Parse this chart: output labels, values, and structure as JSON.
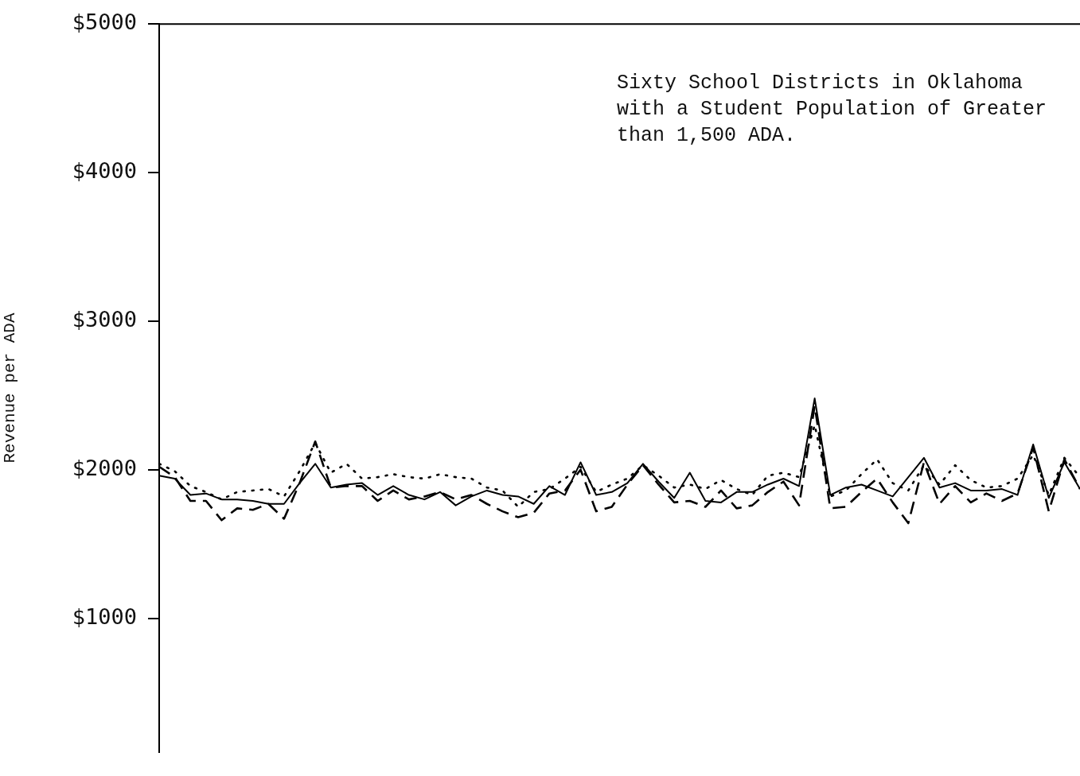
{
  "chart_data": {
    "type": "line",
    "ylabel": "Revenue per ADA",
    "categories": [
      null,
      null,
      null,
      null,
      null,
      null,
      null,
      null,
      null,
      null,
      null,
      null,
      null,
      null,
      null,
      null,
      null,
      null,
      null,
      null,
      null,
      null,
      null,
      null,
      null,
      null,
      null,
      null,
      null,
      null,
      null,
      null,
      null,
      null,
      null,
      null,
      null,
      null,
      null,
      null,
      null,
      null,
      null,
      null,
      null,
      null,
      null,
      null,
      null,
      null,
      null,
      null,
      null,
      null,
      null,
      null,
      null,
      null,
      null,
      null
    ],
    "series": [
      {
        "color": "#000000",
        "line_style": "solid",
        "values": [
          1960,
          1940,
          1830,
          1840,
          1800,
          1800,
          1790,
          1770,
          1770,
          1910,
          2040,
          1880,
          1900,
          1910,
          1830,
          1890,
          1830,
          1800,
          1850,
          1760,
          1820,
          1860,
          1830,
          1820,
          1770,
          1890,
          1830,
          2050,
          1830,
          1850,
          1910,
          2040,
          1920,
          1810,
          1980,
          1790,
          1780,
          1850,
          1850,
          1900,
          1940,
          1890,
          2480,
          1830,
          1880,
          1900,
          1860,
          1820,
          1950,
          2080,
          1880,
          1910,
          1860,
          1860,
          1870,
          1830,
          2170,
          1810,
          2050,
          1870
        ]
      },
      {
        "color": "#000000",
        "line_style": "dashed",
        "values": [
          2020,
          1950,
          1790,
          1790,
          1660,
          1740,
          1730,
          1770,
          1670,
          1910,
          2190,
          1880,
          1890,
          1890,
          1790,
          1860,
          1800,
          1820,
          1850,
          1800,
          1830,
          1770,
          1720,
          1680,
          1710,
          1840,
          1860,
          2000,
          1720,
          1750,
          1900,
          2030,
          1900,
          1780,
          1790,
          1750,
          1860,
          1740,
          1760,
          1850,
          1920,
          1760,
          2430,
          1740,
          1750,
          1850,
          1940,
          1780,
          1640,
          2050,
          1770,
          1890,
          1780,
          1840,
          1790,
          1840,
          2150,
          1720,
          2070,
          1870
        ]
      },
      {
        "color": "#000000",
        "line_style": "dotted",
        "values": [
          2040,
          1990,
          1890,
          1850,
          1800,
          1850,
          1860,
          1870,
          1820,
          1990,
          2180,
          1980,
          2040,
          1940,
          1950,
          1970,
          1950,
          1940,
          1970,
          1950,
          1940,
          1880,
          1860,
          1750,
          1850,
          1870,
          1940,
          2020,
          1850,
          1900,
          1940,
          2030,
          1960,
          1880,
          1900,
          1870,
          1930,
          1870,
          1830,
          1960,
          1980,
          1950,
          2300,
          1820,
          1860,
          1970,
          2070,
          1910,
          1860,
          2030,
          1900,
          2030,
          1930,
          1880,
          1890,
          1940,
          2100,
          1830,
          2080,
          1950
        ]
      }
    ],
    "ylim": [
      100,
      5000
    ],
    "yticks": [
      {
        "value": 1000,
        "label": "$1000"
      },
      {
        "value": 2000,
        "label": "$2000"
      },
      {
        "value": 3000,
        "label": "$3000"
      },
      {
        "value": 4000,
        "label": "$4000"
      },
      {
        "value": 5000,
        "label": "$5000"
      }
    ],
    "tick_labels": "y",
    "grid": false,
    "legend": false,
    "marker": "none",
    "annotations": [
      "Sixty School Districts in Oklahoma with a Student Population of Greater than 1,500 ADA."
    ]
  }
}
